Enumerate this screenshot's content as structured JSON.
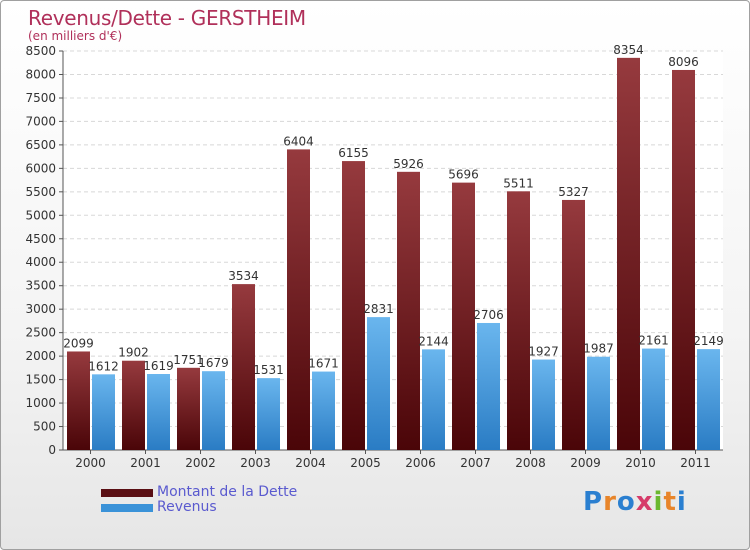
{
  "header": {
    "title": "Revenus/Dette - GERSTHEIM",
    "subtitle": "(en milliers d'€)"
  },
  "chart_data": {
    "type": "bar",
    "categories": [
      "2000",
      "2001",
      "2002",
      "2003",
      "2004",
      "2005",
      "2006",
      "2007",
      "2008",
      "2009",
      "2010",
      "2011"
    ],
    "series": [
      {
        "name": "Montant de la Dette",
        "color": "#7a1a1f",
        "values": [
          2099,
          1902,
          1751,
          3534,
          6404,
          6155,
          5926,
          5696,
          5511,
          5327,
          8354,
          8096
        ]
      },
      {
        "name": "Revenus",
        "color": "#3a92d8",
        "values": [
          1612,
          1619,
          1679,
          1531,
          1671,
          2831,
          2144,
          2706,
          1927,
          1987,
          2161,
          2149
        ]
      }
    ],
    "ylim": [
      0,
      8500
    ],
    "yticks": [
      0,
      500,
      1000,
      1500,
      2000,
      2500,
      3000,
      3500,
      4000,
      4500,
      5000,
      5500,
      6000,
      6500,
      7000,
      7500,
      8000,
      8500
    ],
    "grid": true,
    "legend_position": "bottom-left"
  },
  "legend": {
    "debt_label": "Montant de la Dette",
    "revenue_label": "Revenus",
    "debt_color": "#5a0f14",
    "revenue_color": "#3a92d8"
  },
  "logo": {
    "letters": [
      "P",
      "r",
      "o",
      "x",
      "i",
      "t",
      "i"
    ],
    "colors": [
      "#2a7fd0",
      "#e8852a",
      "#2a7fd0",
      "#d63b6a",
      "#6ab82f",
      "#e8852a",
      "#2a7fd0"
    ]
  }
}
